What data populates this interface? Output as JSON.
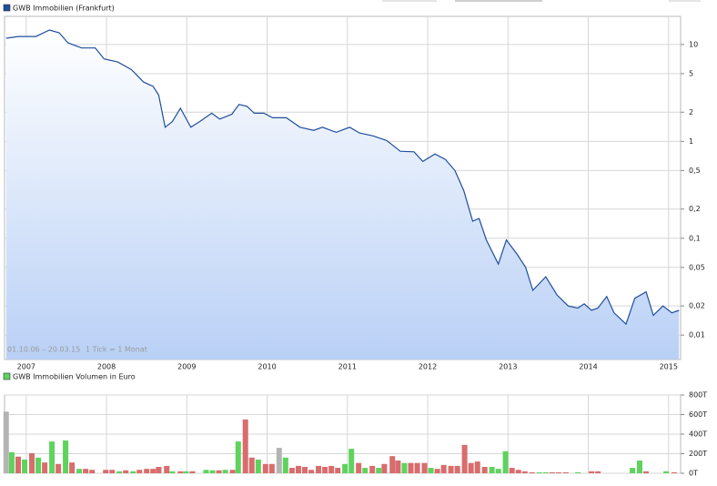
{
  "chart_data": [
    {
      "type": "line",
      "title": "GWB Immobilien (Frankfurt)",
      "log_scale": true,
      "grid": true,
      "annotations": [
        "01.10.06 – 20.03.15",
        "1 Tick = 1 Monat"
      ],
      "xlim": [
        2006.73,
        2015.15
      ],
      "xticks": [
        2007,
        2008,
        2009,
        2010,
        2011,
        2012,
        2013,
        2014,
        2015
      ],
      "ylim": [
        0.0056,
        19.5
      ],
      "yticks": [
        {
          "value": 0.01,
          "label": "0,01"
        },
        {
          "value": 0.02,
          "label": "0,02"
        },
        {
          "value": 0.05,
          "label": "0,05"
        },
        {
          "value": 0.1,
          "label": "0,1"
        },
        {
          "value": 0.2,
          "label": "0,2"
        },
        {
          "value": 0.5,
          "label": "0,5"
        },
        1,
        2,
        5,
        10
      ],
      "series": [
        {
          "name": "GWB Immobilien (Frankfurt)",
          "color": "#1f4e9c",
          "fill": "#b9d0f6",
          "x": [
            2006.75,
            2006.9,
            2007.12,
            2007.29,
            2007.41,
            2007.52,
            2007.69,
            2007.86,
            2007.97,
            2008.14,
            2008.31,
            2008.46,
            2008.58,
            2008.65,
            2008.73,
            2008.82,
            2008.92,
            2009.05,
            2009.16,
            2009.31,
            2009.41,
            2009.56,
            2009.65,
            2009.75,
            2009.84,
            2009.96,
            2010.07,
            2010.24,
            2010.41,
            2010.58,
            2010.69,
            2010.86,
            2011.03,
            2011.15,
            2011.32,
            2011.49,
            2011.66,
            2011.83,
            2011.94,
            2012.09,
            2012.22,
            2012.34,
            2012.45,
            2012.56,
            2012.64,
            2012.73,
            2012.88,
            2012.98,
            2013.11,
            2013.22,
            2013.31,
            2013.47,
            2013.61,
            2013.75,
            2013.87,
            2013.95,
            2014.04,
            2014.12,
            2014.23,
            2014.32,
            2014.47,
            2014.58,
            2014.72,
            2014.81,
            2014.93,
            2015.04,
            2015.13
          ],
          "values": [
            11.6,
            12.1,
            12.1,
            14.1,
            13.2,
            10.4,
            9.2,
            9.2,
            7.1,
            6.6,
            5.5,
            4.1,
            3.7,
            3.0,
            1.4,
            1.6,
            2.2,
            1.4,
            1.6,
            1.95,
            1.7,
            1.9,
            2.4,
            2.3,
            1.95,
            1.95,
            1.75,
            1.75,
            1.4,
            1.3,
            1.4,
            1.24,
            1.4,
            1.22,
            1.14,
            1.02,
            0.79,
            0.78,
            0.62,
            0.74,
            0.65,
            0.5,
            0.31,
            0.15,
            0.16,
            0.096,
            0.054,
            0.096,
            0.069,
            0.05,
            0.029,
            0.04,
            0.026,
            0.02,
            0.019,
            0.021,
            0.018,
            0.019,
            0.025,
            0.017,
            0.013,
            0.024,
            0.028,
            0.016,
            0.02,
            0.017,
            0.018
          ]
        }
      ]
    },
    {
      "type": "bar",
      "title": "GWB Immobilien Volumen in Euro",
      "grid": true,
      "xlim": [
        2006.73,
        2015.15
      ],
      "ylim": [
        0,
        800000
      ],
      "yticks": [
        {
          "value": 0,
          "label": "0T"
        },
        {
          "value": 200000,
          "label": "200T"
        },
        {
          "value": 400000,
          "label": "400T"
        },
        {
          "value": 600000,
          "label": "600T"
        },
        {
          "value": 800000,
          "label": "800T"
        }
      ],
      "series": [
        {
          "name": "GWB Immobilien Volumen in Euro",
          "color": "#5ed35e",
          "x": [
            2006.75,
            2006.82,
            2006.9,
            2006.98,
            2007.07,
            2007.15,
            2007.23,
            2007.32,
            2007.4,
            2007.49,
            2007.57,
            2007.66,
            2007.74,
            2007.82,
            2007.99,
            2008.07,
            2008.16,
            2008.24,
            2008.33,
            2008.41,
            2008.5,
            2008.58,
            2008.65,
            2008.75,
            2008.82,
            2008.92,
            2008.99,
            2009.07,
            2009.24,
            2009.32,
            2009.4,
            2009.48,
            2009.57,
            2009.64,
            2009.73,
            2009.81,
            2009.89,
            2009.98,
            2010.06,
            2010.15,
            2010.23,
            2010.31,
            2010.39,
            2010.47,
            2010.55,
            2010.64,
            2010.72,
            2010.8,
            2010.88,
            2010.97,
            2011.05,
            2011.14,
            2011.22,
            2011.31,
            2011.39,
            2011.46,
            2011.56,
            2011.63,
            2011.71,
            2011.79,
            2011.87,
            2011.96,
            2012.04,
            2012.12,
            2012.2,
            2012.29,
            2012.37,
            2012.46,
            2012.54,
            2012.62,
            2012.71,
            2012.8,
            2012.88,
            2012.97,
            2013.05,
            2013.13,
            2013.21,
            2013.3,
            2013.39,
            2013.47,
            2013.55,
            2013.63,
            2013.72,
            2013.87,
            2014.04,
            2014.12,
            2014.55,
            2014.64,
            2014.72,
            2014.97,
            2015.07
          ],
          "values": [
            630000,
            215000,
            170000,
            140000,
            205000,
            160000,
            110000,
            325000,
            95000,
            335000,
            110000,
            45000,
            45000,
            35000,
            35000,
            35000,
            20000,
            30000,
            20000,
            35000,
            45000,
            45000,
            65000,
            75000,
            20000,
            20000,
            20000,
            20000,
            35000,
            30000,
            30000,
            35000,
            35000,
            325000,
            550000,
            160000,
            140000,
            95000,
            95000,
            260000,
            160000,
            55000,
            75000,
            65000,
            35000,
            75000,
            65000,
            75000,
            55000,
            95000,
            250000,
            105000,
            55000,
            75000,
            55000,
            95000,
            175000,
            130000,
            105000,
            105000,
            105000,
            105000,
            55000,
            45000,
            85000,
            75000,
            75000,
            290000,
            105000,
            120000,
            65000,
            65000,
            45000,
            225000,
            55000,
            35000,
            20000,
            10000,
            10000,
            10000,
            10000,
            10000,
            10000,
            10000,
            20000,
            20000,
            55000,
            130000,
            20000,
            20000,
            10000
          ],
          "colors": [
            "#b4b4b4",
            "#5ed35e",
            "#d96c6c",
            "#5ed35e",
            "#d96c6c",
            "#5ed35e",
            "#d96c6c",
            "#5ed35e",
            "#d96c6c",
            "#5ed35e",
            "#d96c6c",
            "#5ed35e",
            "#d96c6c",
            "#d96c6c",
            "#d96c6c",
            "#d96c6c",
            "#5ed35e",
            "#d96c6c",
            "#5ed35e",
            "#d96c6c",
            "#d96c6c",
            "#d96c6c",
            "#d96c6c",
            "#d96c6c",
            "#5ed35e",
            "#d96c6c",
            "#5ed35e",
            "#d96c6c",
            "#5ed35e",
            "#5ed35e",
            "#d96c6c",
            "#5ed35e",
            "#d96c6c",
            "#5ed35e",
            "#d96c6c",
            "#d96c6c",
            "#5ed35e",
            "#d96c6c",
            "#d96c6c",
            "#b4b4b4",
            "#5ed35e",
            "#d96c6c",
            "#d96c6c",
            "#d96c6c",
            "#d96c6c",
            "#d96c6c",
            "#d96c6c",
            "#d96c6c",
            "#d96c6c",
            "#5ed35e",
            "#5ed35e",
            "#d96c6c",
            "#5ed35e",
            "#d96c6c",
            "#5ed35e",
            "#d96c6c",
            "#d96c6c",
            "#d96c6c",
            "#5ed35e",
            "#d96c6c",
            "#d96c6c",
            "#d96c6c",
            "#5ed35e",
            "#d96c6c",
            "#d96c6c",
            "#d96c6c",
            "#d96c6c",
            "#d96c6c",
            "#d96c6c",
            "#d96c6c",
            "#d96c6c",
            "#5ed35e",
            "#5ed35e",
            "#5ed35e",
            "#d96c6c",
            "#d96c6c",
            "#d96c6c",
            "#d96c6c",
            "#5ed35e",
            "#5ed35e",
            "#d96c6c",
            "#d96c6c",
            "#d96c6c",
            "#5ed35e",
            "#d96c6c",
            "#d96c6c",
            "#5ed35e",
            "#5ed35e",
            "#d96c6c",
            "#5ed35e",
            "#d96c6c"
          ]
        }
      ]
    }
  ]
}
